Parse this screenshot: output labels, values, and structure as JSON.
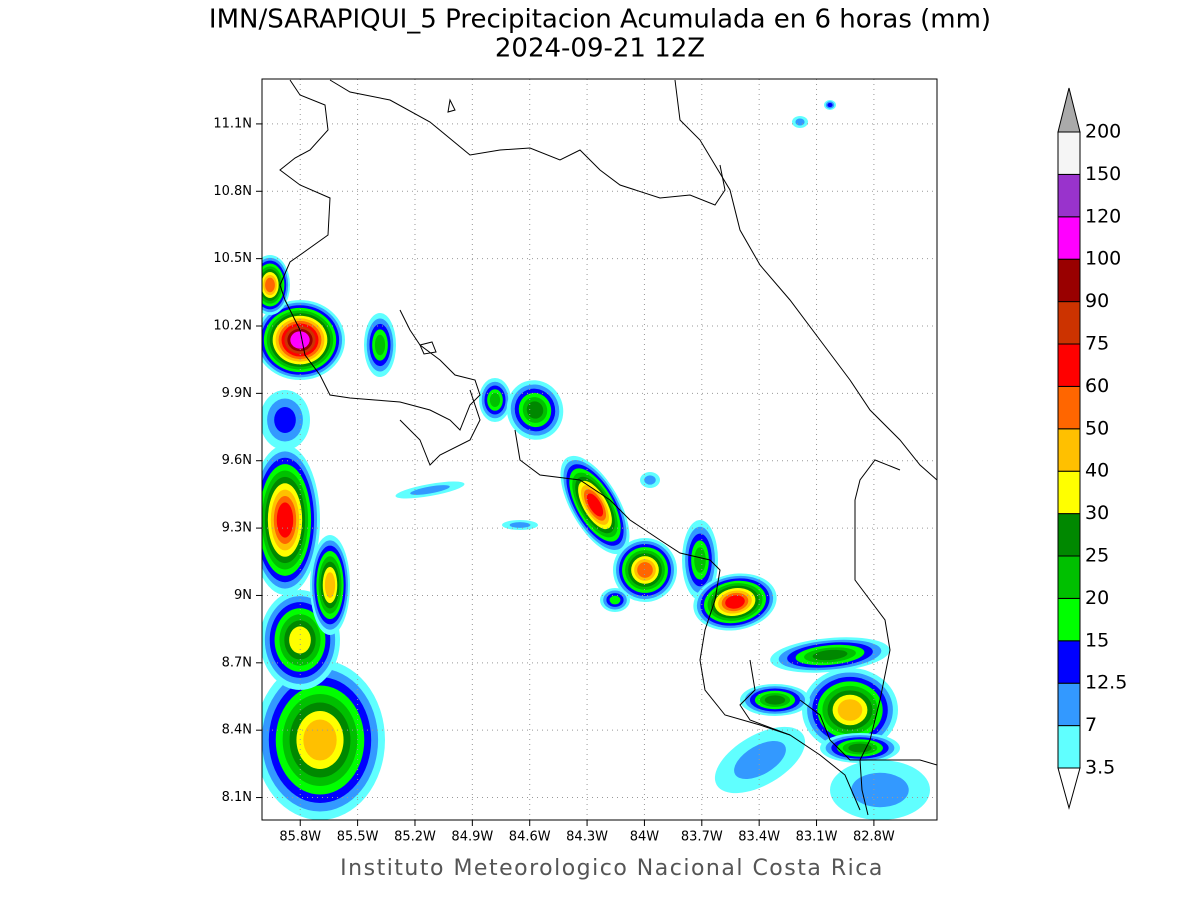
{
  "title": "IMN/SARAPIQUI_5 Precipitacion Acumulada en 6 horas (mm)",
  "subtitle": "2024-09-21 12Z",
  "map": {
    "lon_range": [
      -86.0,
      -82.47
    ],
    "lat_range": [
      8.0,
      11.3
    ],
    "lon_ticks": [
      {
        "value": -85.8,
        "label": "85.8W"
      },
      {
        "value": -85.5,
        "label": "85.5W"
      },
      {
        "value": -85.2,
        "label": "85.2W"
      },
      {
        "value": -84.9,
        "label": "84.9W"
      },
      {
        "value": -84.6,
        "label": "84.6W"
      },
      {
        "value": -84.3,
        "label": "84.3W"
      },
      {
        "value": -84.0,
        "label": "84W"
      },
      {
        "value": -83.7,
        "label": "83.7W"
      },
      {
        "value": -83.4,
        "label": "83.4W"
      },
      {
        "value": -83.1,
        "label": "83.1W"
      },
      {
        "value": -82.8,
        "label": "82.8W"
      }
    ],
    "lat_ticks": [
      {
        "value": 8.1,
        "label": "8.1N"
      },
      {
        "value": 8.4,
        "label": "8.4N"
      },
      {
        "value": 8.7,
        "label": "8.7N"
      },
      {
        "value": 9.0,
        "label": "9N"
      },
      {
        "value": 9.3,
        "label": "9.3N"
      },
      {
        "value": 9.6,
        "label": "9.6N"
      },
      {
        "value": 9.9,
        "label": "9.9N"
      },
      {
        "value": 10.2,
        "label": "10.2N"
      },
      {
        "value": 10.5,
        "label": "10.5N"
      },
      {
        "value": 10.8,
        "label": "10.8N"
      },
      {
        "value": 11.1,
        "label": "11.1N"
      }
    ],
    "grid": true
  },
  "colorbar": {
    "levels": [
      3.5,
      7,
      12.5,
      15,
      20,
      25,
      30,
      40,
      50,
      60,
      75,
      90,
      100,
      120,
      150,
      200
    ],
    "colors": [
      "#ffffff",
      "#60ffff",
      "#3399ff",
      "#0000ff",
      "#00ff00",
      "#00c000",
      "#008800",
      "#ffff00",
      "#ffc000",
      "#ff6600",
      "#ff0000",
      "#cc3300",
      "#990000",
      "#ff00ff",
      "#9933cc",
      "#f5f5f5",
      "#aaaaaa"
    ]
  },
  "footer": "Instituto Meteorologico Nacional Costa Rica"
}
